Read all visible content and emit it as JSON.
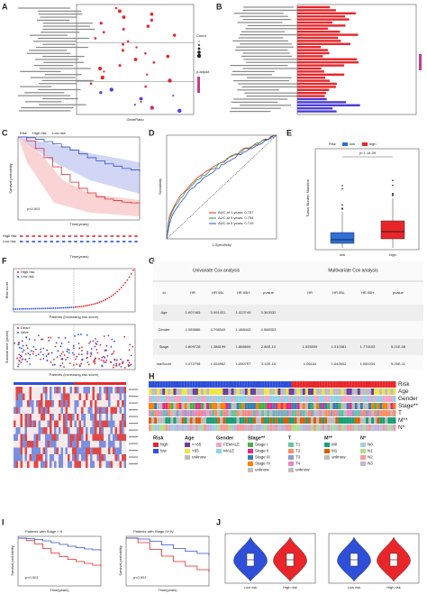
{
  "labels": [
    "A",
    "B",
    "C",
    "D",
    "E",
    "F",
    "G",
    "H",
    "I",
    "J"
  ],
  "panel_a": {
    "xlabel": "GeneRatio",
    "legend": [
      "Count",
      "p.adjust"
    ]
  },
  "panel_c": {
    "legend_title": "Risk",
    "legend": [
      "High risk",
      "Low risk"
    ],
    "p": "p<0.001",
    "ylabel": "Survival probability",
    "xlabel": "Time(years)"
  },
  "panel_d": {
    "auc": [
      "AUC at 1 years: 0.757",
      "AUC at 3 years: 0.754",
      "AUC at 5 years: 0.719"
    ],
    "ylabel": "Sensitivity",
    "xlabel": "1-Specificity"
  },
  "panel_e": {
    "legend_title": "Risk",
    "legend": [
      "low",
      "high"
    ],
    "p": "p=1.1e-09",
    "ylabel": "Tumor Burden Mutation"
  },
  "panel_f": {
    "legend1": [
      "High risk",
      "Low risk"
    ],
    "ylabel1": "Risk score",
    "xlabel": "Patients (increasing risk socre)",
    "legend2": [
      "Dead",
      "Alive"
    ],
    "ylabel2": "Survival time (years)"
  },
  "table": {
    "group_headers": [
      "Univariate Cox analysis",
      "Multivariate Cox analysis"
    ],
    "columns": [
      "id",
      "HR",
      "HR.95L",
      "HR.95H",
      "pvalue",
      "HR",
      "HR.95L",
      "HR.95H",
      "pvalue"
    ],
    "rows": [
      [
        "Age",
        "1.007465",
        "0.991431",
        "1.023749",
        "0.363032"
      ],
      [
        "Gender",
        "1.089886",
        "0.798349",
        "1.488443",
        "0.588303"
      ],
      [
        "Stage",
        "1.609728",
        "1.388199",
        "1.866609",
        "2.84E-10",
        "1.525599",
        "1.310381",
        "1.776153",
        "5.21E-08"
      ],
      [
        "riskScore",
        "1.072798",
        "1.054962",
        "1.090797",
        "3.12E-15",
        "1.06164",
        "1.042602",
        "1.081034",
        "9.25E-11"
      ]
    ]
  },
  "panel_h": {
    "tracks": [
      "Risk",
      "Age",
      "Gender",
      "Stage**",
      "T",
      "M**",
      "N*"
    ],
    "legend": [
      {
        "title": "Risk",
        "items": [
          {
            "label": "high",
            "color": "#e8262a"
          },
          {
            "label": "low",
            "color": "#2f4fd8"
          }
        ]
      },
      {
        "title": "Age",
        "items": [
          {
            "label": "<=65",
            "color": "#6a3d9a"
          },
          {
            "label": ">65",
            "color": "#f0e442"
          },
          {
            "label": "unknow",
            "color": "#bdbdbd"
          }
        ]
      },
      {
        "title": "Gender",
        "items": [
          {
            "label": "FEMALE",
            "color": "#f4a6c8"
          },
          {
            "label": "MALE",
            "color": "#8fd3e8"
          }
        ]
      },
      {
        "title": "Stage**",
        "items": [
          {
            "label": "Stage I",
            "color": "#4daf4a"
          },
          {
            "label": "Stage II",
            "color": "#e7298a"
          },
          {
            "label": "Stage III",
            "color": "#377eb8"
          },
          {
            "label": "Stage IV",
            "color": "#ff7f00"
          },
          {
            "label": "unknow",
            "color": "#bdbdbd"
          }
        ]
      },
      {
        "title": "T",
        "items": [
          {
            "label": "T1",
            "color": "#66c2a5"
          },
          {
            "label": "T2",
            "color": "#fc8d62"
          },
          {
            "label": "T3",
            "color": "#8da0cb"
          },
          {
            "label": "T4",
            "color": "#e78ac3"
          },
          {
            "label": "unknow",
            "color": "#bdbdbd"
          }
        ]
      },
      {
        "title": "M**",
        "items": [
          {
            "label": "M0",
            "color": "#1b9e77"
          },
          {
            "label": "M1",
            "color": "#d95f02"
          },
          {
            "label": "unknow",
            "color": "#bdbdbd"
          }
        ]
      },
      {
        "title": "N*",
        "items": [
          {
            "label": "N0",
            "color": "#a6cee3"
          },
          {
            "label": "N1",
            "color": "#b2df8a"
          },
          {
            "label": "N2",
            "color": "#fb9a99"
          },
          {
            "label": "N3",
            "color": "#cab2d6"
          }
        ]
      }
    ]
  },
  "panel_i": {
    "titles": [
      "Patients with Stage I~II",
      "Patients with Stage III~IV"
    ],
    "p": [
      "p<0.001",
      "p=0.001"
    ],
    "ylabel": "Survival probability",
    "xlabel": "Time(years)"
  },
  "panel_j": {
    "categories": [
      "Low risk",
      "High risk"
    ]
  }
}
